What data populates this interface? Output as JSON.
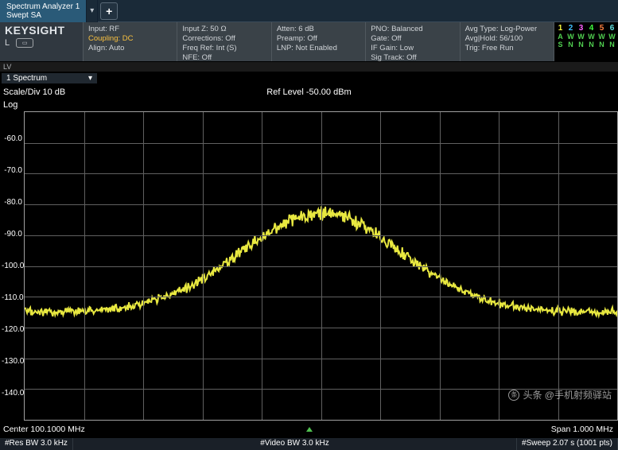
{
  "tab": {
    "line1": "Spectrum Analyzer 1",
    "line2": "Swept SA"
  },
  "brand": "KEYSIGHT",
  "brand_sub": "L",
  "header_cols": [
    [
      {
        "t": "Input: RF"
      },
      {
        "t": "Coupling: DC",
        "cls": "warn"
      },
      {
        "t": "Align: Auto"
      }
    ],
    [
      {
        "t": "Input Z: 50 Ω"
      },
      {
        "t": "Corrections: Off"
      },
      {
        "t": "Freq Ref: Int (S)"
      },
      {
        "t": "NFE: Off"
      }
    ],
    [
      {
        "t": "Atten: 6 dB"
      },
      {
        "t": "Preamp: Off"
      },
      {
        "t": "LNP: Not Enabled"
      }
    ],
    [
      {
        "t": "PNO: Balanced"
      },
      {
        "t": "Gate: Off"
      },
      {
        "t": "IF Gain: Low"
      },
      {
        "t": "Sig Track: Off"
      }
    ],
    [
      {
        "t": "Avg Type: Log-Power"
      },
      {
        "t": "Avg|Hold: 56/100"
      },
      {
        "t": "Trig: Free Run"
      }
    ]
  ],
  "traces": {
    "nums": [
      "1",
      "2",
      "3",
      "4",
      "5",
      "6"
    ],
    "num_colors": [
      "#f8f840",
      "#40c0ff",
      "#ff60ff",
      "#40ff40",
      "#ff8040",
      "#60e0e0"
    ],
    "row1": [
      "A",
      "W",
      "W",
      "W",
      "W",
      "W"
    ],
    "row2": [
      "S",
      "N",
      "N",
      "N",
      "N",
      "N"
    ]
  },
  "lv": "LV",
  "spectrum_dd": "1 Spectrum",
  "scale_label": "Scale/Div 10 dB",
  "ref_label": "Ref Level -50.00 dBm",
  "log_label": "Log",
  "chart": {
    "ylim": [
      -150,
      -50
    ],
    "yticks": [
      -60,
      -70,
      -80,
      -90,
      -100,
      -110,
      -120,
      -130,
      -140
    ],
    "trace_color": "#e8e840",
    "grid_color": "#606060",
    "n_vgrid": 10,
    "n_hgrid": 10,
    "baseline": -115,
    "peak": -83,
    "noise_amp": 2.8,
    "npts": 740
  },
  "bottom": {
    "center": "Center 100.1000 MHz",
    "span": "Span 1.000 MHz",
    "resbw": "#Res BW 3.0 kHz",
    "vidbw": "#Video BW 3.0 kHz",
    "sweep": "#Sweep 2.07 s (1001 pts)"
  },
  "watermark": "头条 @手机射频驿站"
}
